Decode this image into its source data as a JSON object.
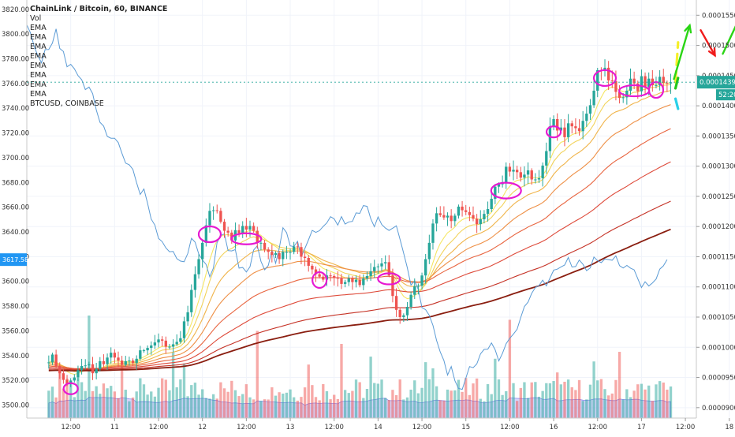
{
  "chart_data": {
    "type": "candlestick",
    "title": "ChainLink / Bitcoin, 60, BINANCE",
    "legend": [
      "Vol",
      "EMA",
      "EMA",
      "EMA",
      "EMA",
      "EMA",
      "EMA",
      "EMA",
      "EMA",
      "BTCUSD, COINBASE"
    ],
    "left_axis": {
      "ticks": [
        "3820.00",
        "3800.00",
        "3780.00",
        "3760.00",
        "3740.00",
        "3720.00",
        "3700.00",
        "3680.00",
        "3660.00",
        "3640.00",
        "3620.00",
        "3600.00",
        "3580.00",
        "3560.00",
        "3540.00",
        "3520.00",
        "3500.00"
      ],
      "ylim": [
        3492,
        3825
      ],
      "current_label": "3617.58",
      "current_value": 3617.58
    },
    "right_axis": {
      "ticks": [
        "0.00015500",
        "0.00015000",
        "0.00014500",
        "0.00014000",
        "0.00013500",
        "0.00013000",
        "0.00012500",
        "0.00012000",
        "0.00011500",
        "0.00011000",
        "0.00010500",
        "0.00010000",
        "0.00009500",
        "0.00009000"
      ],
      "ylim": [
        8.88e-05,
        0.000157
      ],
      "current_label": "0.00014391",
      "current_value": 0.00014391,
      "countdown_label": "52:20"
    },
    "x_axis": {
      "ticks": [
        "12:00",
        "11",
        "12:00",
        "12",
        "12:00",
        "13",
        "12:00",
        "14",
        "12:00",
        "15",
        "12:00",
        "16",
        "12:00",
        "17",
        "12:00",
        "18"
      ],
      "range_hours": [
        -6,
        177
      ]
    },
    "price_series": {
      "name": "ChainLink / Bitcoin",
      "start_hour": 0,
      "close": [
        9.75e-05,
        9.88e-05,
        9.69e-05,
        9.57e-05,
        9.46e-05,
        9.39e-05,
        9.45e-05,
        9.5e-05,
        9.62e-05,
        9.69e-05,
        9.7e-05,
        9.72e-05,
        9.57e-05,
        9.64e-05,
        9.77e-05,
        9.72e-05,
        9.83e-05,
        9.91e-05,
        9.83e-05,
        9.78e-05,
        9.71e-05,
        9.77e-05,
        9.78e-05,
        9.74e-05,
        9.81e-05,
        9.95e-05,
        9.95e-05,
        9.99e-05,
        0.0001003,
        0.0001008,
        0.0001013,
        0.0001011,
        0.0001001,
        0.0001001,
        0.0001005,
        0.0001009,
        0.0001015,
        0.0001043,
        0.0001058,
        0.0001095,
        0.0001121,
        0.0001146,
        0.0001173,
        0.0001202,
        0.0001226,
        0.0001227,
        0.0001226,
        0.0001208,
        0.0001193,
        0.000119,
        0.0001177,
        0.0001194,
        0.0001189,
        0.0001201,
        0.0001195,
        0.0001201,
        0.0001193,
        0.0001173,
        0.0001173,
        0.0001162,
        0.0001158,
        0.0001153,
        0.0001156,
        0.0001146,
        0.0001158,
        0.0001158,
        0.0001158,
        0.0001167,
        0.0001166,
        0.000115,
        0.0001148,
        0.0001135,
        0.0001129,
        0.0001121,
        0.0001117,
        0.0001112,
        0.0001119,
        0.0001118,
        0.0001115,
        0.0001114,
        0.0001105,
        0.0001108,
        0.0001114,
        0.0001108,
        0.0001112,
        0.0001103,
        0.0001114,
        0.0001118,
        0.0001126,
        0.0001133,
        0.0001134,
        0.0001139,
        0.0001141,
        0.0001119,
        0.0001085,
        0.0001062,
        0.000105,
        0.0001053,
        0.0001067,
        0.0001087,
        0.0001101,
        0.0001102,
        0.0001119,
        0.0001146,
        0.0001173,
        0.0001205,
        0.0001222,
        0.0001219,
        0.0001215,
        0.0001218,
        0.0001209,
        0.0001218,
        0.0001233,
        0.0001227,
        0.0001224,
        0.0001219,
        0.0001213,
        0.0001204,
        0.0001212,
        0.0001221,
        0.0001229,
        0.0001246,
        0.0001266,
        0.000127,
        0.0001272,
        0.0001299,
        0.0001291,
        0.0001294,
        0.000129,
        0.0001281,
        0.0001286,
        0.0001293,
        0.0001278,
        0.0001278,
        0.000128,
        0.0001301,
        0.0001325,
        0.0001366,
        0.0001378,
        0.0001359,
        0.0001364,
        0.0001348,
        0.0001371,
        0.0001366,
        0.0001363,
        0.0001358,
        0.0001375,
        0.0001387,
        0.0001401,
        0.0001425,
        0.0001459,
        0.0001458,
        0.0001463,
        0.0001442,
        0.0001441,
        0.0001423,
        0.0001413,
        0.0001414,
        0.0001425,
        0.0001445,
        0.0001437,
        0.0001424,
        0.0001449,
        0.0001431,
        0.0001445,
        0.0001434,
        0.0001434,
        0.0001448,
        0.0001438,
        0.0001437,
        0.0001439
      ],
      "up_color": "#26a69a",
      "down_color": "#ef5350"
    },
    "btc_series": {
      "name": "BTCUSD, COINBASE",
      "start_hour": -6,
      "values": [
        3807.4,
        3801.1,
        3790.2,
        3782.6,
        3776.8,
        3787.4,
        3787.5,
        3792.8,
        3804.2,
        3788.3,
        3785.9,
        3773.5,
        3775.5,
        3771.9,
        3766.3,
        3763.1,
        3755.1,
        3757.1,
        3751.8,
        3738.6,
        3728.6,
        3725.6,
        3717.2,
        3715.8,
        3715.8,
        3712.2,
        3703.6,
        3695.6,
        3694.3,
        3690.6,
        3679.8,
        3670.3,
        3674.7,
        3663.2,
        3650.4,
        3645.5,
        3634.8,
        3632.1,
        3627.1,
        3624.0,
        3624.2,
        3618.4,
        3616.4,
        3615.9,
        3622.5,
        3634.9,
        3631.7,
        3622.2,
        3617.3,
        3613.7,
        3603.7,
        3610.8,
        3631.3,
        3637.1,
        3638.5,
        3624.9,
        3624.6,
        3625.7,
        3610.7,
        3611.2,
        3607.6,
        3611.8,
        3625.3,
        3628.8,
        3616.2,
        3609.4,
        3612.9,
        3625.3,
        3614.6,
        3626.8,
        3643.4,
        3639.4,
        3628.7,
        3628.2,
        3632.4,
        3619.9,
        3626.6,
        3633.6,
        3641.2,
        3639.6,
        3641.0,
        3644.4,
        3647.3,
        3652.3,
        3650.6,
        3645.5,
        3652.4,
        3646.4,
        3648.1,
        3648.5,
        3655.4,
        3655.0,
        3661.3,
        3660.7,
        3650.7,
        3644.2,
        3652.1,
        3646.0,
        3643.1,
        3641.2,
        3643.0,
        3644.9,
        3634.1,
        3622.6,
        3611.0,
        3597.0,
        3600.5,
        3593.4,
        3578.8,
        3577.1,
        3572.6,
        3564.4,
        3552.2,
        3543.0,
        3536.0,
        3524.3,
        3531.1,
        3519.7,
        3513.5,
        3512.7,
        3521.7,
        3531.1,
        3530.2,
        3533.2,
        3541.4,
        3545.0,
        3545.2,
        3550.2,
        3544.8,
        3535.7,
        3541.7,
        3549.6,
        3554.0,
        3557.3,
        3561.3,
        3570.8,
        3579.7,
        3583.2,
        3590.3,
        3595.1,
        3596.6,
        3601.0,
        3596.4,
        3602.7,
        3609.1,
        3609.9,
        3611.7,
        3613.2,
        3619.3,
        3611.6,
        3612.0,
        3617.3,
        3613.8,
        3608.7,
        3610.9,
        3619.7,
        3616.7,
        3615.1,
        3618.1,
        3617.6,
        3617.1,
        3620.7,
        3612.7,
        3610.8,
        3612.9,
        3610.7,
        3609.3,
        3602.1,
        3595.0,
        3599.7,
        3596.3,
        3598.7,
        3601.9,
        3609.9,
        3612.6,
        3617.6
      ],
      "color": "#5b9bd5"
    },
    "ema_periods": [
      8,
      13,
      21,
      34,
      55,
      89,
      144,
      200
    ],
    "ema_colors": [
      "#f5e663",
      "#f2d35a",
      "#f0b44a",
      "#ee8f45",
      "#e8643f",
      "#de4a3a",
      "#c53226",
      "#8a1e10"
    ],
    "volume_area_color": "#b3b3f5",
    "annotations": {
      "circle_color": "#e619d2",
      "arrow_up_color": "#2ad515",
      "arrow_down_color": "#f01c1c",
      "projection_colors": [
        "#f5ef2a",
        "#22c71a",
        "#2ad0e8"
      ]
    }
  }
}
